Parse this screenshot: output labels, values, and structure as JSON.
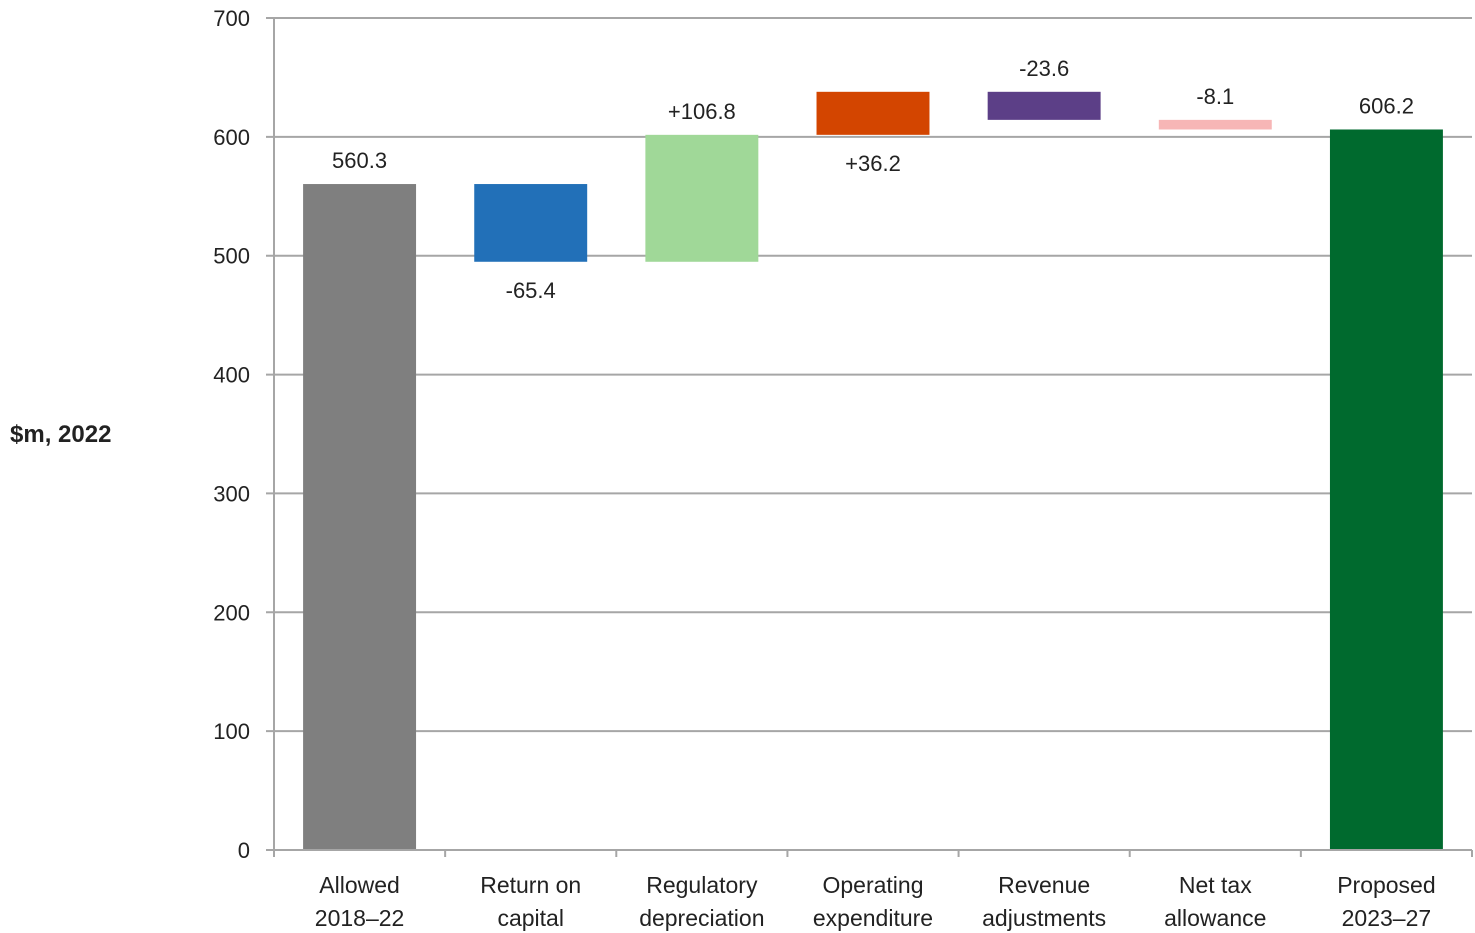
{
  "chart_data": {
    "type": "bar",
    "subtype": "waterfall",
    "title": "",
    "ylabel": "$m, 2022",
    "xlabel": "",
    "ylim": [
      0,
      700
    ],
    "yticks": [
      0,
      100,
      200,
      300,
      400,
      500,
      600,
      700
    ],
    "grid": true,
    "legend": "none",
    "categories": [
      [
        "Allowed",
        "2018–22"
      ],
      [
        "Return on",
        "capital"
      ],
      [
        "Regulatory",
        "depreciation"
      ],
      [
        "Operating",
        "expenditure"
      ],
      [
        "Revenue",
        "adjustments"
      ],
      [
        "Net tax",
        "allowance"
      ],
      [
        "Proposed",
        "2023–27"
      ]
    ],
    "bars": [
      {
        "kind": "total",
        "start": 0,
        "end": 560.3,
        "label": "560.3",
        "color": "#7f7f7f",
        "label_position": "above"
      },
      {
        "kind": "change",
        "start": 560.3,
        "end": 494.9,
        "label": "-65.4",
        "color": "#2270b8",
        "label_position": "below"
      },
      {
        "kind": "change",
        "start": 494.9,
        "end": 601.7,
        "label": "+106.8",
        "color": "#a0d898",
        "label_position": "above"
      },
      {
        "kind": "change",
        "start": 601.7,
        "end": 637.9,
        "label": "+36.2",
        "color": "#d34500",
        "label_position": "below"
      },
      {
        "kind": "change",
        "start": 637.9,
        "end": 614.3,
        "label": "-23.6",
        "color": "#5c3f87",
        "label_position": "above"
      },
      {
        "kind": "change",
        "start": 614.3,
        "end": 606.2,
        "label": "-8.1",
        "color": "#f7b6b6",
        "label_position": "above"
      },
      {
        "kind": "total",
        "start": 0,
        "end": 606.2,
        "label": "606.2",
        "color": "#006a2e",
        "label_position": "above"
      }
    ],
    "colors": {
      "grid": "#a6a6a6",
      "axis": "#a6a6a6",
      "text": "#222222"
    }
  }
}
